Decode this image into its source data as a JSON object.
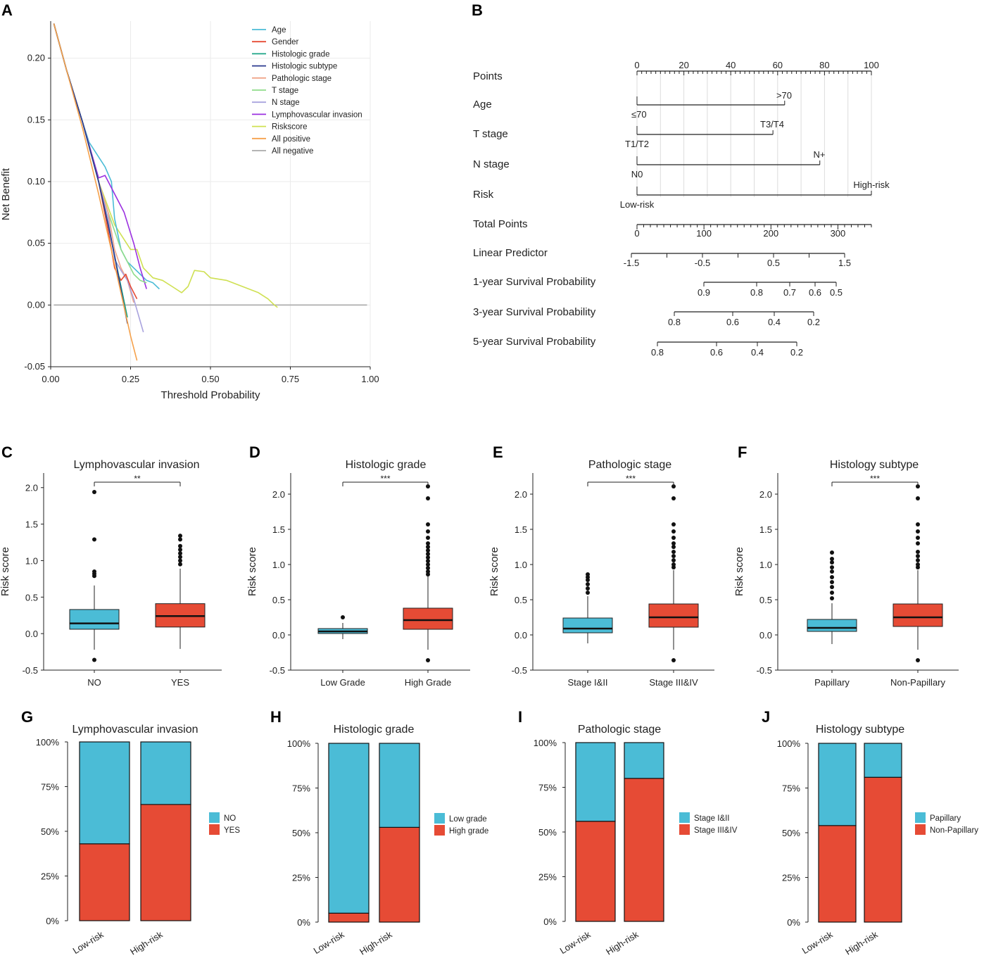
{
  "panel_labels": [
    "A",
    "B",
    "C",
    "D",
    "E",
    "F",
    "G",
    "H",
    "I",
    "J"
  ],
  "colors": {
    "blue": "#4bbcd6",
    "red": "#e64b35",
    "grid": "#ebebeb",
    "text": "#222222"
  },
  "chart_data": [
    {
      "panel": "A",
      "type": "line",
      "title": "",
      "xlabel": "Threshold Probability",
      "ylabel": "Net Benefit",
      "xlim": [
        0.0,
        1.0
      ],
      "ylim": [
        -0.05,
        0.23
      ],
      "xticks": [
        0.0,
        0.25,
        0.5,
        0.75,
        1.0
      ],
      "xtick_labels": [
        "0.00",
        "0.25",
        "0.50",
        "0.75",
        "1.00"
      ],
      "yticks": [
        -0.05,
        0.0,
        0.05,
        0.1,
        0.15,
        0.2
      ],
      "ytick_labels": [
        "-0.05",
        "0.00",
        "0.05",
        "0.10",
        "0.15",
        "0.20"
      ],
      "legend_position": "top-right",
      "series": [
        {
          "name": "Age",
          "color": "#4bbcd6",
          "x": [
            0.01,
            0.05,
            0.1,
            0.12,
            0.15,
            0.17,
            0.19,
            0.2,
            0.22,
            0.24,
            0.26,
            0.28,
            0.3,
            0.32,
            0.34
          ],
          "y": [
            0.228,
            0.19,
            0.148,
            0.132,
            0.12,
            0.112,
            0.1,
            0.07,
            0.045,
            0.035,
            0.03,
            0.025,
            0.02,
            0.018,
            0.013
          ]
        },
        {
          "name": "Gender",
          "color": "#e64b35",
          "x": [
            0.01,
            0.05,
            0.1,
            0.15,
            0.18,
            0.2,
            0.22,
            0.235,
            0.25,
            0.27
          ],
          "y": [
            0.228,
            0.19,
            0.148,
            0.1,
            0.06,
            0.03,
            0.02,
            0.025,
            0.015,
            0.005
          ]
        },
        {
          "name": "Histologic grade",
          "color": "#1aa385",
          "x": [
            0.01,
            0.05,
            0.1,
            0.15,
            0.18,
            0.2,
            0.22,
            0.24
          ],
          "y": [
            0.228,
            0.19,
            0.148,
            0.1,
            0.065,
            0.04,
            0.015,
            -0.01
          ]
        },
        {
          "name": "Histologic subtype",
          "color": "#2b3a8f",
          "x": [
            0.01,
            0.05,
            0.1,
            0.15,
            0.18,
            0.2,
            0.22,
            0.24
          ],
          "y": [
            0.228,
            0.19,
            0.148,
            0.1,
            0.065,
            0.04,
            0.012,
            -0.015
          ]
        },
        {
          "name": "Pathologic stage",
          "color": "#f0a58a",
          "x": [
            0.01,
            0.05,
            0.1,
            0.15,
            0.18,
            0.2,
            0.22,
            0.24,
            0.26
          ],
          "y": [
            0.228,
            0.19,
            0.148,
            0.1,
            0.075,
            0.045,
            0.03,
            0.02,
            0.002
          ]
        },
        {
          "name": "T stage",
          "color": "#8fdc8a",
          "x": [
            0.01,
            0.05,
            0.1,
            0.15,
            0.18,
            0.2,
            0.22,
            0.24,
            0.26,
            0.28,
            0.3
          ],
          "y": [
            0.228,
            0.19,
            0.148,
            0.1,
            0.075,
            0.06,
            0.045,
            0.035,
            0.025,
            0.02,
            0.018
          ]
        },
        {
          "name": "N stage",
          "color": "#a9a3de",
          "x": [
            0.01,
            0.05,
            0.1,
            0.15,
            0.18,
            0.2,
            0.22,
            0.24,
            0.26,
            0.29
          ],
          "y": [
            0.228,
            0.19,
            0.148,
            0.1,
            0.07,
            0.037,
            0.028,
            0.02,
            0.005,
            -0.022
          ]
        },
        {
          "name": "Lymphovascular invasion",
          "color": "#9b30e0",
          "x": [
            0.01,
            0.05,
            0.1,
            0.15,
            0.17,
            0.2,
            0.23,
            0.26,
            0.28,
            0.3
          ],
          "y": [
            0.228,
            0.19,
            0.148,
            0.103,
            0.105,
            0.09,
            0.075,
            0.05,
            0.03,
            0.013
          ]
        },
        {
          "name": "Riskscore",
          "color": "#cfe052",
          "x": [
            0.01,
            0.05,
            0.1,
            0.15,
            0.2,
            0.25,
            0.27,
            0.29,
            0.32,
            0.35,
            0.38,
            0.41,
            0.43,
            0.45,
            0.48,
            0.5,
            0.55,
            0.6,
            0.65,
            0.68,
            0.7,
            0.71
          ],
          "y": [
            0.228,
            0.19,
            0.148,
            0.1,
            0.065,
            0.045,
            0.045,
            0.03,
            0.022,
            0.02,
            0.015,
            0.01,
            0.015,
            0.028,
            0.027,
            0.022,
            0.02,
            0.015,
            0.01,
            0.005,
            0.0,
            -0.002
          ]
        },
        {
          "name": "All positive",
          "color": "#f5a14b",
          "x": [
            0.01,
            0.05,
            0.1,
            0.15,
            0.2,
            0.25,
            0.27
          ],
          "y": [
            0.228,
            0.19,
            0.143,
            0.09,
            0.033,
            -0.025,
            -0.045
          ]
        },
        {
          "name": "All negative",
          "color": "#aaaaaa",
          "x": [
            0.01,
            0.99
          ],
          "y": [
            0.0,
            0.0
          ]
        }
      ]
    },
    {
      "panel": "B",
      "type": "nomogram",
      "rows": [
        {
          "label": "Points",
          "ticks": [
            0,
            20,
            40,
            60,
            80,
            100
          ],
          "tick_labels": [
            "0",
            "20",
            "40",
            "60",
            "80",
            "100"
          ]
        },
        {
          "label": "Age",
          "levels": [
            "≤70",
            ">70"
          ],
          "points": [
            0,
            63
          ]
        },
        {
          "label": "T stage",
          "levels": [
            "T1/T2",
            "T3/T4"
          ],
          "points": [
            0,
            58
          ]
        },
        {
          "label": "N stage",
          "levels": [
            "N0",
            "N+"
          ],
          "points": [
            0,
            78
          ]
        },
        {
          "label": "Risk",
          "levels": [
            "Low-risk",
            "High-risk"
          ],
          "points": [
            0,
            100
          ]
        },
        {
          "label": "Total Points",
          "ticks": [
            0,
            100,
            200,
            300
          ],
          "tick_labels": [
            "0",
            "100",
            "200",
            "300"
          ]
        },
        {
          "label": "Linear Predictor",
          "ticks": [
            -1.5,
            -0.5,
            0.5,
            1.5
          ],
          "tick_labels": [
            "-1.5",
            "-0.5",
            "0.5",
            "1.5"
          ]
        },
        {
          "label": "1-year Survival Probability",
          "tick_labels": [
            "0.9",
            "0.8",
            "0.7",
            "0.6",
            "0.5"
          ]
        },
        {
          "label": "3-year Survival Probability",
          "tick_labels": [
            "0.8",
            "0.6",
            "0.4",
            "0.2"
          ]
        },
        {
          "label": "5-year Survival Probability",
          "tick_labels": [
            "0.8",
            "0.6",
            "0.4",
            "0.2"
          ]
        }
      ]
    },
    {
      "panel": "C",
      "type": "box",
      "title": "Lymphovascular invasion",
      "ylabel": "Risk score",
      "categories": [
        "NO",
        "YES"
      ],
      "significance": "**",
      "ylim": [
        -0.5,
        2.2
      ],
      "yticks": [
        -0.5,
        0.0,
        0.5,
        1.0,
        1.5,
        2.0
      ],
      "ytick_labels": [
        "-0.5",
        "0.0",
        "0.5",
        "1.0",
        "1.5",
        "2.0"
      ],
      "boxes": [
        {
          "q1": 0.06,
          "median": 0.14,
          "q3": 0.33,
          "whisker_low": -0.22,
          "whisker_high": 0.66,
          "outliers": [
            -0.36,
            0.79,
            0.82,
            0.85,
            1.29,
            1.94
          ]
        },
        {
          "q1": 0.09,
          "median": 0.24,
          "q3": 0.41,
          "whisker_low": -0.21,
          "whisker_high": 0.89,
          "outliers": [
            0.95,
            1.0,
            1.05,
            1.1,
            1.15,
            1.2,
            1.29,
            1.34
          ]
        }
      ]
    },
    {
      "panel": "D",
      "type": "box",
      "title": "Histologic grade",
      "ylabel": "Risk score",
      "categories": [
        "Low Grade",
        "High Grade"
      ],
      "significance": "***",
      "ylim": [
        -0.5,
        2.3
      ],
      "yticks": [
        -0.5,
        0.0,
        0.5,
        1.0,
        1.5,
        2.0
      ],
      "ytick_labels": [
        "-0.5",
        "0.0",
        "0.5",
        "1.0",
        "1.5",
        "2.0"
      ],
      "boxes": [
        {
          "q1": 0.02,
          "median": 0.05,
          "q3": 0.09,
          "whisker_low": -0.06,
          "whisker_high": 0.17,
          "outliers": [
            0.25
          ]
        },
        {
          "q1": 0.08,
          "median": 0.21,
          "q3": 0.38,
          "whisker_low": -0.21,
          "whisker_high": 0.83,
          "outliers": [
            -0.36,
            0.86,
            0.9,
            0.95,
            1.0,
            1.05,
            1.1,
            1.15,
            1.2,
            1.25,
            1.3,
            1.38,
            1.47,
            1.57,
            1.94,
            2.11
          ]
        }
      ]
    },
    {
      "panel": "E",
      "type": "box",
      "title": "Pathologic stage",
      "ylabel": "Risk score",
      "categories": [
        "Stage I&II",
        "Stage III&IV"
      ],
      "significance": "***",
      "ylim": [
        -0.5,
        2.3
      ],
      "yticks": [
        -0.5,
        0.0,
        0.5,
        1.0,
        1.5,
        2.0
      ],
      "ytick_labels": [
        "-0.5",
        "0.0",
        "0.5",
        "1.0",
        "1.5",
        "2.0"
      ],
      "boxes": [
        {
          "q1": 0.03,
          "median": 0.09,
          "q3": 0.24,
          "whisker_low": -0.12,
          "whisker_high": 0.55,
          "outliers": [
            0.6,
            0.66,
            0.72,
            0.78,
            0.82,
            0.86
          ]
        },
        {
          "q1": 0.11,
          "median": 0.25,
          "q3": 0.44,
          "whisker_low": -0.21,
          "whisker_high": 0.92,
          "outliers": [
            -0.36,
            0.96,
            1.0,
            1.06,
            1.12,
            1.18,
            1.25,
            1.3,
            1.38,
            1.47,
            1.57,
            1.94,
            2.11
          ]
        }
      ]
    },
    {
      "panel": "F",
      "type": "box",
      "title": "Histology subtype",
      "ylabel": "Risk score",
      "categories": [
        "Papillary",
        "Non-Papillary"
      ],
      "significance": "***",
      "ylim": [
        -0.5,
        2.3
      ],
      "yticks": [
        -0.5,
        0.0,
        0.5,
        1.0,
        1.5,
        2.0
      ],
      "ytick_labels": [
        "-0.5",
        "0.0",
        "0.5",
        "1.0",
        "1.5",
        "2.0"
      ],
      "boxes": [
        {
          "q1": 0.05,
          "median": 0.1,
          "q3": 0.22,
          "whisker_low": -0.13,
          "whisker_high": 0.45,
          "outliers": [
            0.52,
            0.6,
            0.68,
            0.75,
            0.82,
            0.9,
            0.96,
            1.03,
            1.08,
            1.17
          ]
        },
        {
          "q1": 0.12,
          "median": 0.25,
          "q3": 0.44,
          "whisker_low": -0.21,
          "whisker_high": 0.92,
          "outliers": [
            -0.36,
            0.96,
            1.0,
            1.06,
            1.12,
            1.18,
            1.3,
            1.38,
            1.47,
            1.57,
            1.94,
            2.11
          ]
        }
      ]
    },
    {
      "panel": "G",
      "type": "bar",
      "stacked": true,
      "title": "Lymphovascular invasion",
      "categories": [
        "Low-risk",
        "High-risk"
      ],
      "yticks": [
        "0%",
        "25%",
        "50%",
        "75%",
        "100%"
      ],
      "series": [
        {
          "name": "NO",
          "color": "#4bbcd6",
          "values": [
            57,
            35
          ]
        },
        {
          "name": "YES",
          "color": "#e64b35",
          "values": [
            43,
            65
          ]
        }
      ],
      "legend": [
        "NO",
        "YES"
      ]
    },
    {
      "panel": "H",
      "type": "bar",
      "stacked": true,
      "title": "Histologic grade",
      "categories": [
        "Low-risk",
        "High-risk"
      ],
      "yticks": [
        "0%",
        "25%",
        "50%",
        "75%",
        "100%"
      ],
      "series": [
        {
          "name": "Low grade",
          "color": "#4bbcd6",
          "values": [
            95,
            47
          ]
        },
        {
          "name": "High grade",
          "color": "#e64b35",
          "values": [
            5,
            53
          ]
        }
      ],
      "legend": [
        "Low grade",
        "High grade"
      ]
    },
    {
      "panel": "I",
      "type": "bar",
      "stacked": true,
      "title": "Pathologic stage",
      "categories": [
        "Low-risk",
        "High-risk"
      ],
      "yticks": [
        "0%",
        "25%",
        "50%",
        "75%",
        "100%"
      ],
      "series": [
        {
          "name": "Stage I&II",
          "color": "#4bbcd6",
          "values": [
            44,
            20
          ]
        },
        {
          "name": "Stage III&IV",
          "color": "#e64b35",
          "values": [
            56,
            80
          ]
        }
      ],
      "legend": [
        "Stage I&II",
        "Stage III&IV"
      ]
    },
    {
      "panel": "J",
      "type": "bar",
      "stacked": true,
      "title": "Histology subtype",
      "categories": [
        "Low-risk",
        "High-risk"
      ],
      "yticks": [
        "0%",
        "25%",
        "50%",
        "75%",
        "100%"
      ],
      "series": [
        {
          "name": "Papillary",
          "color": "#4bbcd6",
          "values": [
            46,
            19
          ]
        },
        {
          "name": "Non-Papillary",
          "color": "#e64b35",
          "values": [
            54,
            81
          ]
        }
      ],
      "legend": [
        "Papillary",
        "Non-Papillary"
      ]
    }
  ]
}
